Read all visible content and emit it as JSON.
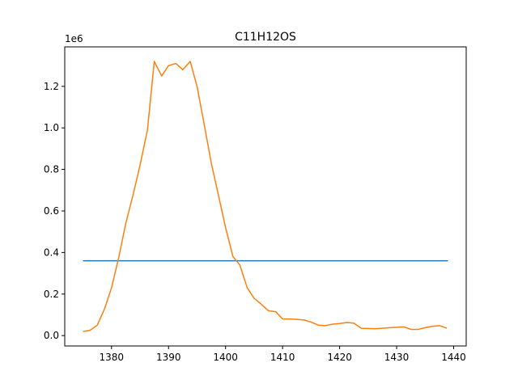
{
  "chart_data": {
    "type": "line",
    "title": "C11H12OS",
    "xlabel": "",
    "ylabel": "",
    "offset_label": "1e6",
    "xlim": [
      1371.8,
      1442.2
    ],
    "ylim": [
      -0.05,
      1.39
    ],
    "x_ticks": [
      1380,
      1390,
      1400,
      1410,
      1420,
      1430,
      1440
    ],
    "x_tick_labels": [
      "1380",
      "1390",
      "1400",
      "1410",
      "1420",
      "1430",
      "1440"
    ],
    "y_ticks": [
      0.0,
      0.2,
      0.4,
      0.6,
      0.8,
      1.0,
      1.2
    ],
    "y_tick_labels": [
      "0.0",
      "0.2",
      "0.4",
      "0.6",
      "0.8",
      "1.0",
      "1.2"
    ],
    "grid": false,
    "legend": "none",
    "series": [
      {
        "color": "#1f77b4",
        "x": [
          1375,
          1439
        ],
        "y": [
          0.36,
          0.36
        ]
      },
      {
        "color": "#ff7f0e",
        "x": [
          1375,
          1376.2,
          1377.5,
          1378.8,
          1380,
          1381.3,
          1382.5,
          1383.8,
          1385,
          1386.3,
          1387.5,
          1388.8,
          1390,
          1391.3,
          1392.5,
          1393.8,
          1395,
          1396.3,
          1397.5,
          1398.8,
          1400,
          1401.3,
          1402.5,
          1403.8,
          1405,
          1406.3,
          1407.5,
          1408.8,
          1410,
          1411.3,
          1412.5,
          1413.8,
          1415,
          1416.3,
          1417.5,
          1418.8,
          1420,
          1421.3,
          1422.5,
          1423.8,
          1425,
          1426.3,
          1427.5,
          1428.8,
          1430,
          1431.3,
          1432.5,
          1433.8,
          1435,
          1436.3,
          1437.5,
          1438.8
        ],
        "y": [
          0.02,
          0.025,
          0.05,
          0.13,
          0.23,
          0.38,
          0.54,
          0.68,
          0.82,
          0.99,
          1.32,
          1.25,
          1.3,
          1.31,
          1.28,
          1.32,
          1.2,
          1.01,
          0.83,
          0.67,
          0.52,
          0.38,
          0.34,
          0.23,
          0.18,
          0.15,
          0.12,
          0.115,
          0.08,
          0.08,
          0.078,
          0.075,
          0.065,
          0.05,
          0.048,
          0.055,
          0.058,
          0.063,
          0.06,
          0.035,
          0.034,
          0.033,
          0.035,
          0.038,
          0.04,
          0.042,
          0.03,
          0.03,
          0.038,
          0.045,
          0.048,
          0.036
        ]
      }
    ]
  }
}
